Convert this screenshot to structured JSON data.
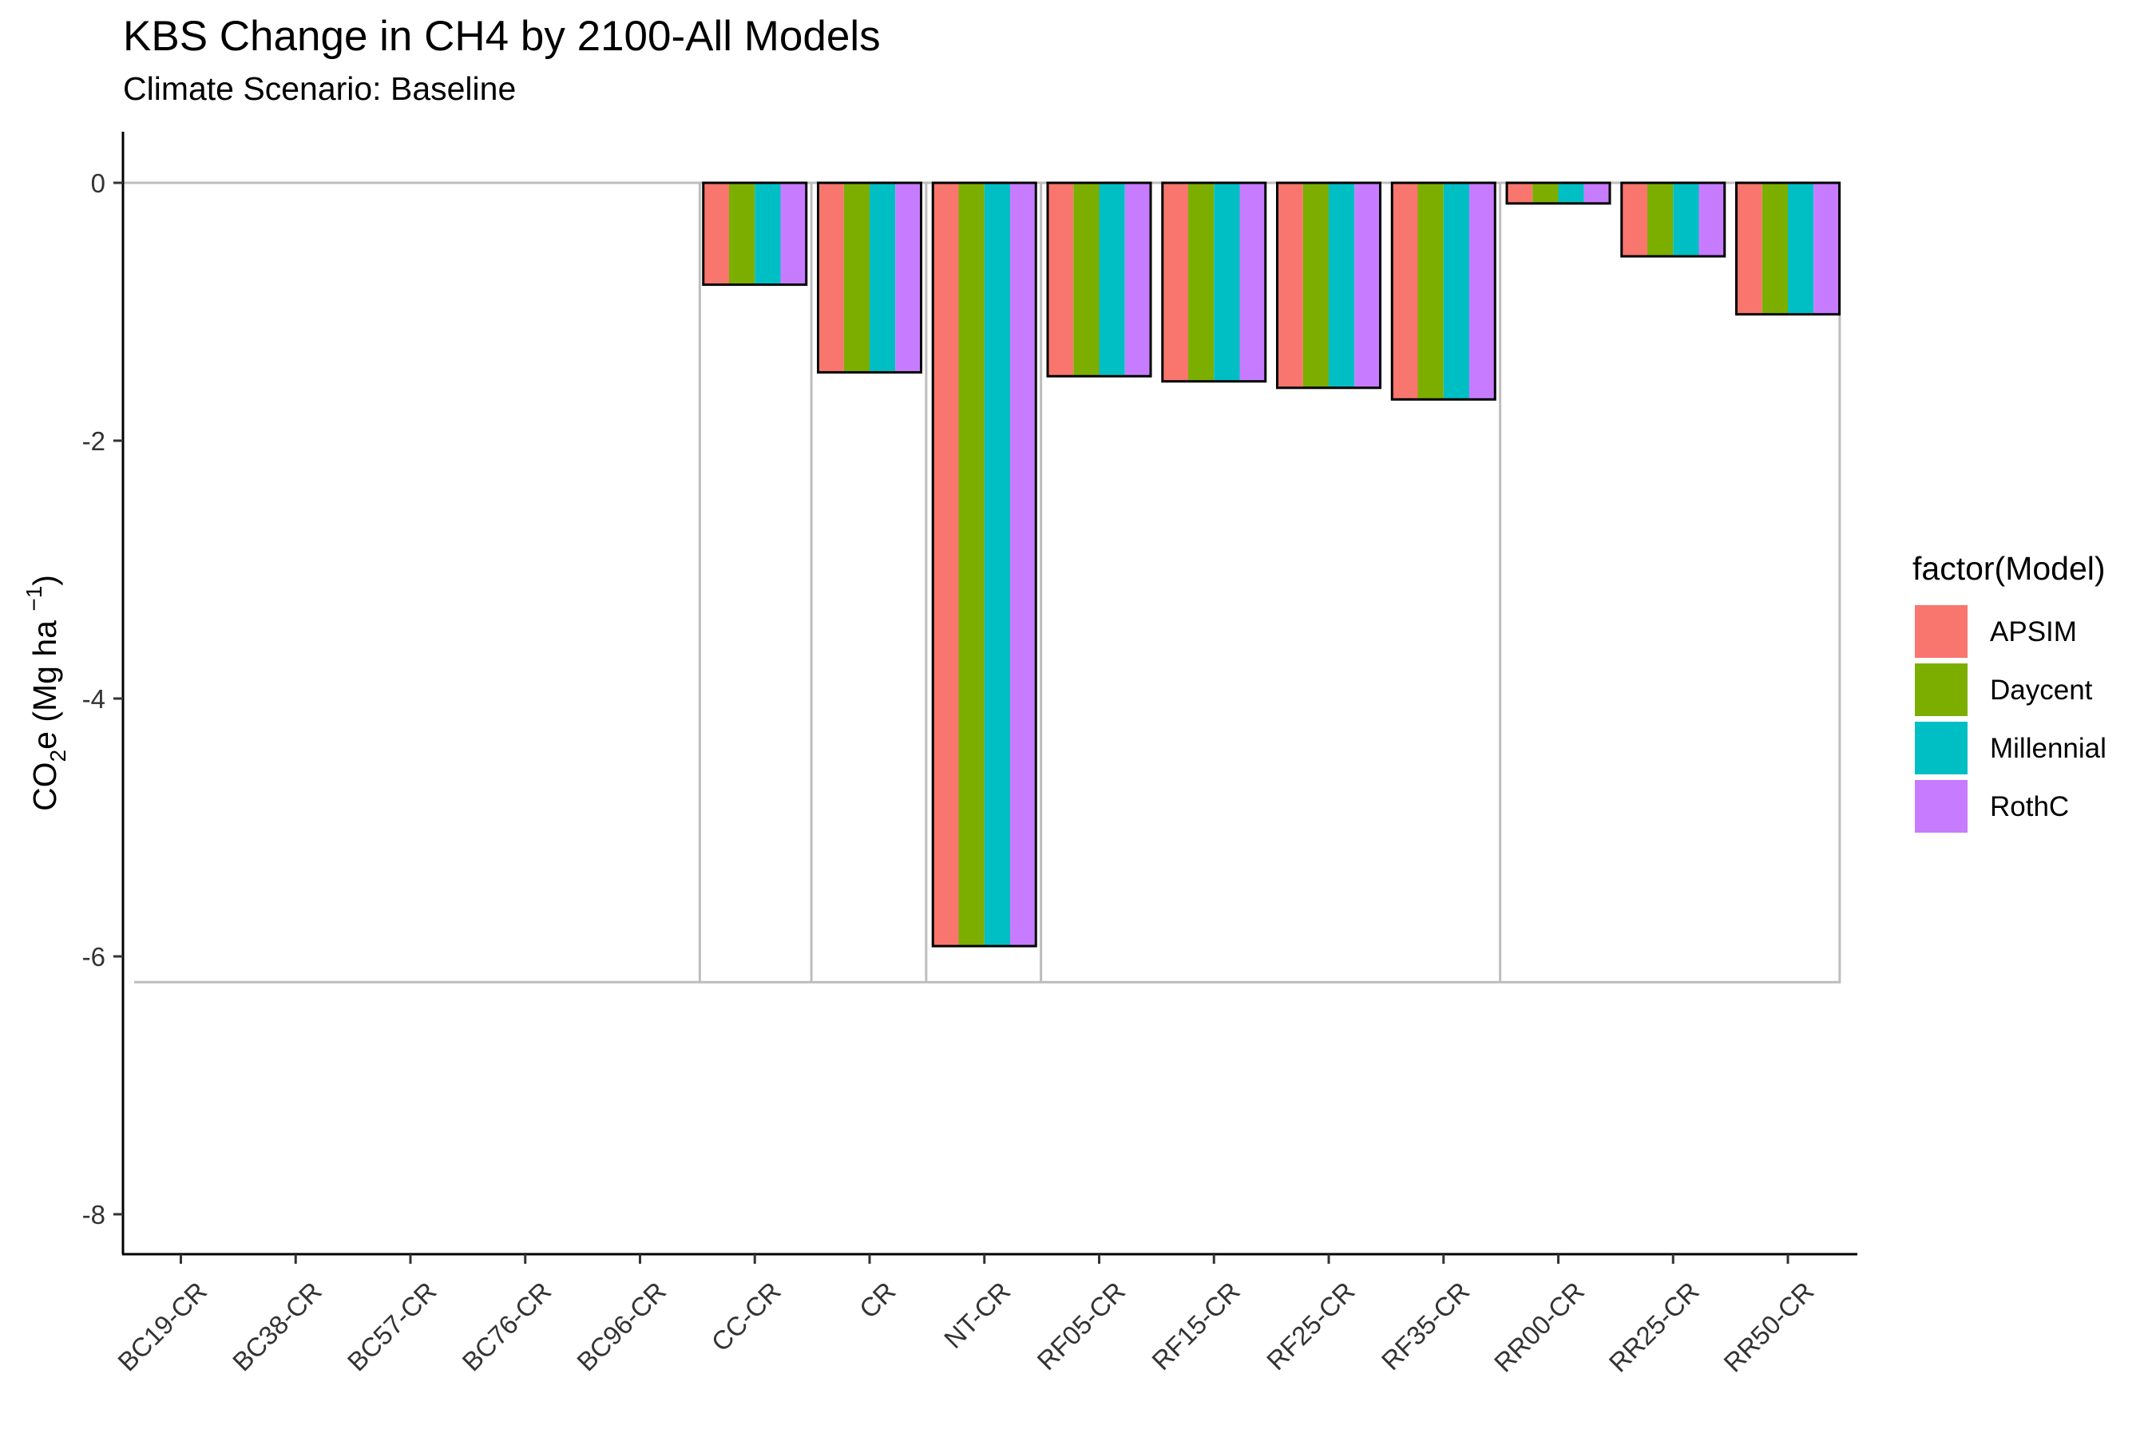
{
  "chart_data": {
    "type": "bar",
    "title": "KBS Change in CH4 by 2100-All Models",
    "subtitle": "Climate Scenario: Baseline",
    "ylabel": {
      "base": "CO",
      "sub": "2",
      "mid": "e (Mg ha ",
      "sup": "−1",
      "end": ")"
    },
    "xlabel": "",
    "ylim": [
      -8.9,
      0.4
    ],
    "yticks": [
      0,
      -2,
      -4,
      -6,
      -8
    ],
    "ytick_labels": [
      "0",
      "-2",
      "-4",
      "-6",
      "-8"
    ],
    "categories": [
      "BC19-CR",
      "BC38-CR",
      "BC57-CR",
      "BC76-CR",
      "BC96-CR",
      "CC-CR",
      "CR",
      "NT-CR",
      "RF05-CR",
      "RF15-CR",
      "RF25-CR",
      "RF35-CR",
      "RR00-CR",
      "RR25-CR",
      "RR50-CR"
    ],
    "series": [
      {
        "name": "APSIM",
        "color": "#F8766D",
        "values": [
          null,
          null,
          null,
          null,
          null,
          -0.79,
          -1.47,
          -5.92,
          -1.5,
          -1.54,
          -1.59,
          -1.68,
          -0.16,
          -0.57,
          -1.02
        ]
      },
      {
        "name": "Daycent",
        "color": "#7CAE00",
        "values": [
          null,
          null,
          null,
          null,
          null,
          -0.79,
          -1.47,
          -5.92,
          -1.5,
          -1.54,
          -1.59,
          -1.68,
          -0.16,
          -0.57,
          -1.02
        ]
      },
      {
        "name": "Millennial",
        "color": "#00BFC4",
        "values": [
          null,
          null,
          null,
          null,
          null,
          -0.79,
          -1.47,
          -5.92,
          -1.5,
          -1.54,
          -1.59,
          -1.68,
          -0.16,
          -0.57,
          -1.02
        ]
      },
      {
        "name": "RothC",
        "color": "#C77CFF",
        "values": [
          null,
          null,
          null,
          null,
          null,
          -0.79,
          -1.47,
          -5.92,
          -1.5,
          -1.54,
          -1.59,
          -1.68,
          -0.16,
          -0.57,
          -1.02
        ]
      }
    ],
    "reference_box": {
      "y_top": 0,
      "y_bottom": -6.2,
      "x_start_index": 5,
      "x_end_index": 14,
      "dividers_after": [
        5,
        6,
        7,
        11
      ]
    },
    "grid": false,
    "legend": {
      "title": "factor(Model)",
      "position": "right"
    }
  }
}
